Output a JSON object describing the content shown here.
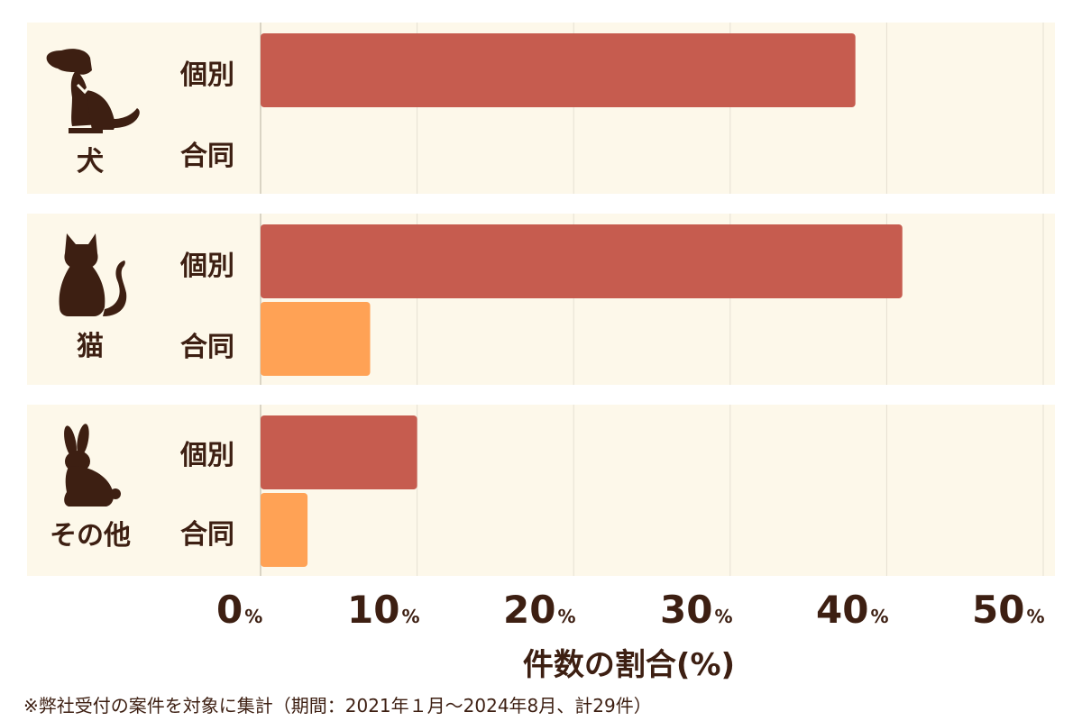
{
  "chart_data": {
    "type": "bar",
    "orientation": "horizontal",
    "xlabel": "件数の割合(%)",
    "xlim": [
      0,
      50
    ],
    "x_ticks": [
      0,
      10,
      20,
      30,
      40,
      50
    ],
    "x_tick_unit": "%",
    "grid": true,
    "groups": [
      {
        "label": "犬",
        "icon": "dog-icon",
        "bars": [
          {
            "label": "個別",
            "value": 38
          },
          {
            "label": "合同",
            "value": 0
          }
        ]
      },
      {
        "label": "猫",
        "icon": "cat-icon",
        "bars": [
          {
            "label": "個別",
            "value": 41
          },
          {
            "label": "合同",
            "value": 7
          }
        ]
      },
      {
        "label": "その他",
        "icon": "rabbit-icon",
        "bars": [
          {
            "label": "個別",
            "value": 10
          },
          {
            "label": "合同",
            "value": 3
          }
        ]
      }
    ],
    "colors": {
      "個別": "#c65c4f",
      "合同": "#ffa255",
      "band": "#fdf8ea",
      "grid": "#e5e0d2",
      "text": "#3d1f12"
    }
  },
  "footnote": "※弊社受付の案件を対象に集計（期間：2021年１月〜2024年8月、計29件）"
}
